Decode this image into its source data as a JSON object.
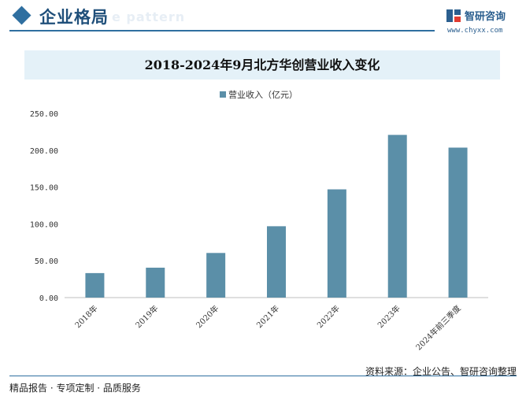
{
  "header": {
    "title": "企业格局",
    "watermark": "e pattern"
  },
  "logo": {
    "name": "智研咨询",
    "url": "www.chyxx.com"
  },
  "chart_data": {
    "type": "bar",
    "title": "2018-2024年9月北方华创营业收入变化",
    "categories": [
      "2018年",
      "2019年",
      "2020年",
      "2021年",
      "2022年",
      "2023年",
      "2024年前三季度"
    ],
    "series": [
      {
        "name": "营业收入（亿元）",
        "values": [
          33.24,
          40.58,
          60.56,
          96.83,
          146.88,
          220.79,
          203.53
        ]
      }
    ],
    "ylim": [
      0,
      250
    ],
    "yticks": [
      "0.00",
      "50.00",
      "100.00",
      "150.00",
      "200.00",
      "250.00"
    ],
    "grid": false,
    "legend_position": "top-center",
    "colors": {
      "bar": "#5b8fa8",
      "accent": "#2f6fa0"
    }
  },
  "footer": {
    "source": "资料来源：企业公告、智研咨询整理",
    "slogan": "精品报告 · 专项定制 · 品质服务"
  }
}
